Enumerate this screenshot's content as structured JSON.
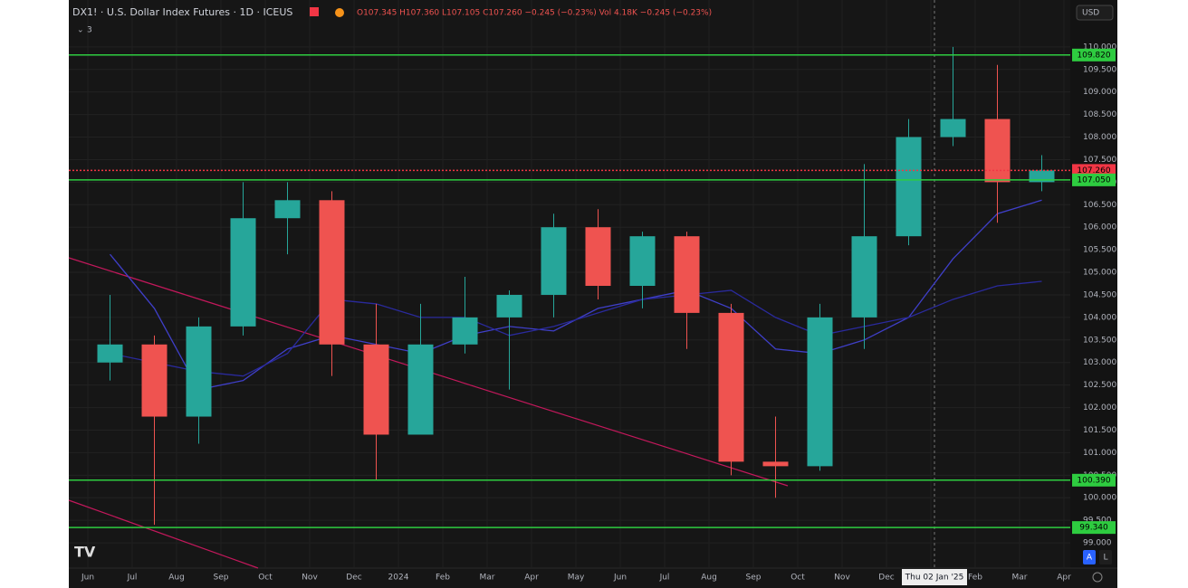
{
  "chart_data": {
    "type": "candlestick",
    "title": "DX1! · U.S. Dollar Index Futures · 1D · ICEUS",
    "ohlc_text": "O107.345 H107.360 L107.105 C107.260 −0.245 (−0.23%) Vol 4.18K −0.245 (−0.23%)",
    "indicator_count": "3",
    "currency": "USD",
    "crosshair_label": "Thu 02 Jan '25",
    "buttons": [
      "A",
      "L"
    ],
    "categories": [
      "Jun",
      "Jul",
      "Aug",
      "Sep",
      "Oct",
      "Nov",
      "Dec",
      "2024",
      "Feb",
      "Mar",
      "Apr",
      "May",
      "Jun",
      "Jul",
      "Aug",
      "Sep",
      "Oct",
      "Nov",
      "Dec",
      null,
      "Feb",
      "Mar",
      "Apr"
    ],
    "open": [
      103.0,
      103.4,
      101.8,
      103.8,
      106.2,
      106.6,
      103.4,
      101.4,
      103.4,
      104.0,
      104.5,
      106.0,
      104.7,
      105.8,
      104.1,
      100.8,
      100.7,
      104.0,
      105.8,
      108.0,
      108.4,
      107.0,
      null
    ],
    "high": [
      104.5,
      103.6,
      104.0,
      107.0,
      107.0,
      106.8,
      104.3,
      104.3,
      104.9,
      104.6,
      106.3,
      106.4,
      105.9,
      105.9,
      104.3,
      101.8,
      104.3,
      107.4,
      108.4,
      110.0,
      109.6,
      107.6,
      null
    ],
    "low": [
      102.6,
      99.4,
      101.2,
      103.6,
      105.4,
      102.7,
      100.4,
      101.5,
      103.2,
      102.4,
      104.0,
      104.4,
      104.2,
      103.3,
      100.5,
      100.0,
      100.6,
      103.3,
      105.6,
      107.8,
      106.1,
      106.8,
      null
    ],
    "close": [
      103.4,
      101.8,
      103.8,
      106.2,
      106.6,
      103.4,
      101.4,
      103.4,
      104.0,
      104.5,
      106.0,
      104.7,
      105.8,
      104.1,
      100.8,
      100.7,
      104.0,
      105.8,
      108.0,
      108.4,
      107.0,
      107.26,
      null
    ],
    "up_color": "#26a69a",
    "down_color": "#ef5350",
    "series": [
      {
        "color": "#3f3fc8",
        "values": [
          105.4,
          104.2,
          102.4,
          102.6,
          103.3,
          103.6,
          103.4,
          103.2,
          103.6,
          103.8,
          103.7,
          104.2,
          104.4,
          104.6,
          104.2,
          103.3,
          103.2,
          103.5,
          104.0,
          105.3,
          106.3,
          106.6,
          null
        ]
      },
      {
        "color": "#2a2a9c",
        "values": [
          103.2,
          103.0,
          102.8,
          102.7,
          103.2,
          104.4,
          104.3,
          104.0,
          104.0,
          103.6,
          103.8,
          104.1,
          104.4,
          104.5,
          104.6,
          104.0,
          103.6,
          103.8,
          104.0,
          104.4,
          104.7,
          104.8,
          null
        ]
      }
    ],
    "hlines": [
      {
        "value": 109.82,
        "label": "109.820",
        "color": "#2ecc40"
      },
      {
        "value": 107.26,
        "label": "107.260",
        "color": "#f23645",
        "style": "dotted"
      },
      {
        "value": 107.05,
        "label": "107.050",
        "color": "#2ecc40"
      },
      {
        "value": 100.39,
        "label": "100.390",
        "color": "#2ecc40"
      },
      {
        "value": 99.34,
        "label": "99.340",
        "color": "#2ecc40"
      }
    ],
    "ylim": [
      98.44,
      111.04
    ],
    "yticks": [
      {
        "value": 99,
        "label": "99.000"
      },
      {
        "value": 99.5,
        "label": "99.500"
      },
      {
        "value": 100,
        "label": "100.000"
      },
      {
        "value": 100.5,
        "label": "100.500"
      },
      {
        "value": 101,
        "label": "101.000"
      },
      {
        "value": 101.5,
        "label": "101.500"
      },
      {
        "value": 102,
        "label": "102.000"
      },
      {
        "value": 102.5,
        "label": "102.500"
      },
      {
        "value": 103,
        "label": "103.000"
      },
      {
        "value": 103.5,
        "label": "103.500"
      },
      {
        "value": 104,
        "label": "104.000"
      },
      {
        "value": 104.5,
        "label": "104.500"
      },
      {
        "value": 105,
        "label": "105.000"
      },
      {
        "value": 105.5,
        "label": "105.500"
      },
      {
        "value": 106,
        "label": "106.000"
      },
      {
        "value": 106.5,
        "label": "106.500"
      },
      {
        "value": 107,
        "label": "107.000"
      },
      {
        "value": 107.5,
        "label": "107.500"
      },
      {
        "value": 108,
        "label": "108.000"
      },
      {
        "value": 108.5,
        "label": "108.500"
      },
      {
        "value": 109,
        "label": "109.000"
      },
      {
        "value": 109.5,
        "label": "109.500"
      },
      {
        "value": 110,
        "label": "110.000"
      }
    ],
    "grid": true
  }
}
